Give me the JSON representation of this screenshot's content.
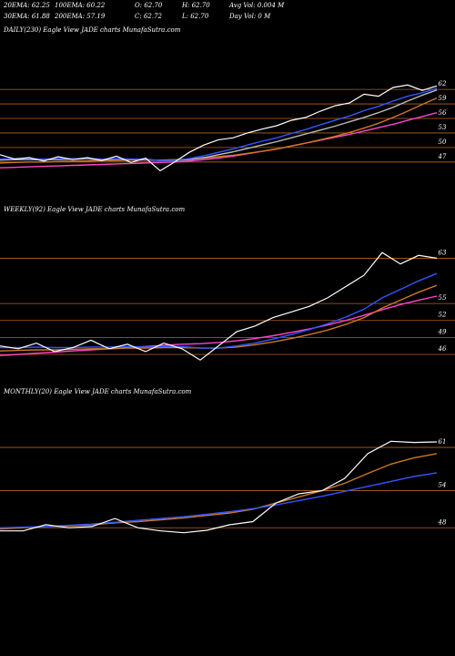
{
  "header": {
    "rows": [
      [
        "20EMA: 62.25",
        "100EMA: 60.22",
        "O: 62.70",
        "H: 62.70",
        "Avg Vol: 0.004 M"
      ],
      [
        "30EMA: 61.88",
        "200EMA: 57.19",
        "C: 62.72",
        "L: 62.70",
        "Day Vol: 0  M"
      ]
    ]
  },
  "chart_data": [
    {
      "type": "line",
      "title": "DAILY(230) Eagle  View  JADE charts MunafaSutra.com",
      "ylim": [
        40,
        72
      ],
      "yticks": [
        62,
        59,
        56,
        53,
        50,
        47
      ],
      "grid": true,
      "grid_color": "#b5651d",
      "series": [
        {
          "color": "#ff44cc",
          "values": [
            45.8,
            45.9,
            46.0,
            46.1,
            46.2,
            46.3,
            46.4,
            46.5,
            46.6,
            46.7,
            46.8,
            46.9,
            47.0,
            47.2,
            47.5,
            47.8,
            48.2,
            48.7,
            49.2,
            49.7,
            50.3,
            50.9,
            51.5,
            52.1,
            52.7,
            53.4,
            54.1,
            54.8,
            55.6,
            56.4,
            57.19
          ]
        },
        {
          "color": "#cc7722",
          "values": [
            46.8,
            46.9,
            47.0,
            47.0,
            47.1,
            47.2,
            47.2,
            47.3,
            47.3,
            47.4,
            47.4,
            47.4,
            47.5,
            47.6,
            47.8,
            48.1,
            48.4,
            48.8,
            49.2,
            49.7,
            50.3,
            50.9,
            51.6,
            52.3,
            53.1,
            54.0,
            55.0,
            56.2,
            57.5,
            58.9,
            60.22
          ]
        },
        {
          "color": "#bbbbbb",
          "values": [
            47.4,
            47.5,
            47.5,
            47.5,
            47.5,
            47.6,
            47.6,
            47.5,
            47.6,
            47.5,
            47.5,
            47.3,
            47.3,
            47.5,
            47.9,
            48.5,
            49.1,
            49.8,
            50.5,
            51.2,
            52.0,
            52.8,
            53.6,
            54.4,
            55.3,
            56.2,
            57.2,
            58.3,
            59.6,
            60.8,
            61.88
          ]
        },
        {
          "color": "#3355ff",
          "values": [
            47.6,
            47.7,
            47.7,
            47.6,
            47.7,
            47.7,
            47.7,
            47.6,
            47.7,
            47.6,
            47.6,
            47.3,
            47.3,
            47.7,
            48.3,
            49.0,
            49.7,
            50.5,
            51.3,
            52.0,
            52.9,
            53.7,
            54.7,
            55.6,
            56.5,
            57.6,
            58.5,
            59.6,
            60.6,
            61.3,
            62.25
          ]
        },
        {
          "color": "#ffffff",
          "values": [
            48.5,
            47.6,
            47.9,
            47.2,
            48.1,
            47.5,
            47.9,
            47.3,
            48.2,
            46.9,
            47.8,
            45.2,
            47.0,
            49.0,
            50.5,
            51.6,
            52.0,
            53.0,
            53.8,
            54.5,
            55.6,
            56.2,
            57.5,
            58.6,
            59.2,
            61.0,
            60.6,
            62.4,
            62.9,
            61.8,
            62.72
          ]
        }
      ]
    },
    {
      "type": "line",
      "title": "WEEKLY(92) Eagle  View  JADE charts MunafaSutra.com",
      "ylim": [
        41,
        70
      ],
      "yticks": [
        63,
        55,
        52,
        49,
        46
      ],
      "grid": true,
      "grid_color": "#b5651d",
      "series": [
        {
          "color": "#ff44cc",
          "values": [
            45.8,
            46.0,
            46.2,
            46.4,
            46.6,
            46.8,
            47.0,
            47.2,
            47.4,
            47.6,
            47.8,
            47.9,
            48.1,
            48.4,
            48.8,
            49.3,
            49.9,
            50.5,
            51.2,
            52.0,
            52.9,
            53.9,
            54.8,
            55.6,
            56.3
          ]
        },
        {
          "color": "#cc7722",
          "values": [
            46.6,
            46.7,
            46.8,
            46.8,
            46.9,
            47.0,
            47.0,
            47.1,
            47.1,
            47.2,
            47.2,
            47.1,
            47.1,
            47.3,
            47.7,
            48.2,
            48.8,
            49.5,
            50.3,
            51.3,
            52.5,
            54.2,
            55.6,
            57.0,
            58.2
          ]
        },
        {
          "color": "#3355ff",
          "values": [
            47.2,
            47.2,
            47.3,
            47.2,
            47.2,
            47.3,
            47.3,
            47.4,
            47.3,
            47.4,
            47.4,
            47.1,
            47.1,
            47.5,
            48.0,
            48.7,
            49.5,
            50.4,
            51.4,
            52.6,
            54.0,
            56.0,
            57.5,
            59.0,
            60.3
          ]
        },
        {
          "color": "#ffffff",
          "values": [
            47.5,
            47.0,
            48.0,
            46.5,
            47.2,
            48.5,
            47.0,
            47.8,
            46.5,
            48.0,
            47.0,
            45.0,
            47.5,
            50.0,
            51.0,
            52.5,
            53.5,
            54.5,
            56.0,
            58.0,
            60.0,
            64.0,
            62.0,
            63.5,
            63.0
          ]
        }
      ]
    },
    {
      "type": "line",
      "title": "MONTHLY(20) Eagle  View  JADE charts MunafaSutra.com",
      "ylim": [
        42,
        70
      ],
      "yticks": [
        61,
        54,
        48
      ],
      "grid": true,
      "grid_color": "#b5651d",
      "series": [
        {
          "color": "#cc7722",
          "values": [
            47.8,
            48.0,
            48.2,
            48.3,
            48.5,
            48.8,
            49.0,
            49.3,
            49.6,
            50.0,
            50.4,
            51.0,
            52.0,
            53.0,
            54.0,
            55.2,
            56.8,
            58.3,
            59.3,
            60.0
          ]
        },
        {
          "color": "#3355ff",
          "values": [
            48.0,
            48.1,
            48.2,
            48.4,
            48.6,
            48.9,
            49.2,
            49.5,
            49.8,
            50.2,
            50.6,
            51.1,
            51.7,
            52.4,
            53.1,
            53.9,
            54.7,
            55.5,
            56.3,
            56.9
          ]
        },
        {
          "color": "#ffffff",
          "values": [
            47.5,
            47.5,
            48.5,
            48.0,
            48.2,
            49.5,
            48.0,
            47.5,
            47.2,
            47.6,
            48.5,
            49.0,
            52.0,
            53.5,
            54.0,
            56.0,
            60.0,
            62.0,
            61.8,
            61.9
          ]
        }
      ]
    }
  ]
}
